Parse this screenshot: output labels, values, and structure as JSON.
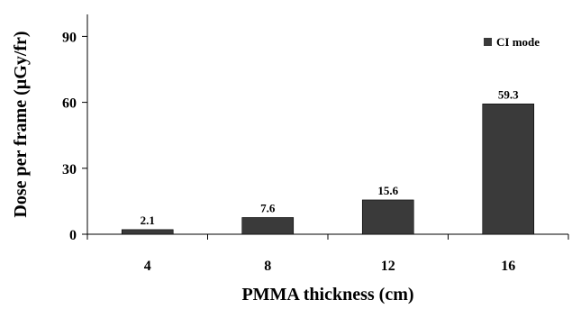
{
  "chart_data": {
    "type": "bar",
    "categories": [
      "4",
      "8",
      "12",
      "16"
    ],
    "series": [
      {
        "name": "CI mode",
        "values": [
          2.1,
          7.6,
          15.6,
          59.3
        ],
        "color": "#3a3a3a"
      }
    ],
    "data_labels": [
      "2.1",
      "7.6",
      "15.6",
      "59.3"
    ],
    "xlabel": "PMMA thickness (cm)",
    "ylabel": "Dose per frame (µGy/fr)",
    "ylim": [
      0,
      100
    ],
    "yticks": [
      0,
      30,
      60,
      90
    ],
    "grid": false,
    "legend_position": "top-right"
  }
}
